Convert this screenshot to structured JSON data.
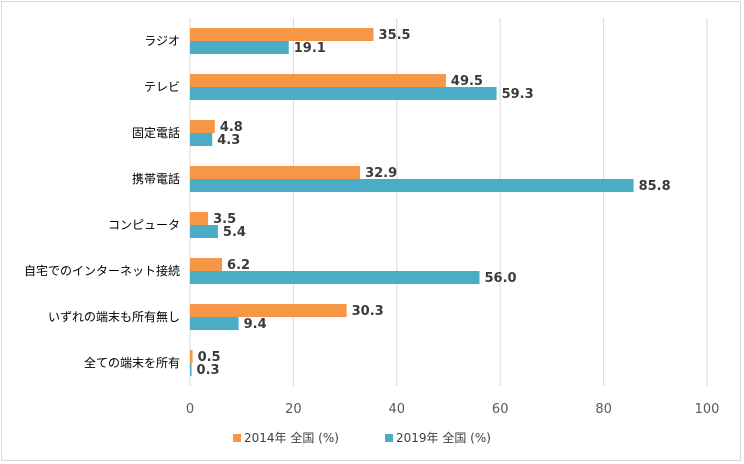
{
  "chart_data": {
    "type": "bar",
    "orientation": "horizontal",
    "categories": [
      "ラジオ",
      "テレビ",
      "固定電話",
      "携帯電話",
      "コンピュータ",
      "自宅でのインターネット接続",
      "いずれの端末も所有無し",
      "全ての端末を所有"
    ],
    "series": [
      {
        "name": "2014年 全国 (%)",
        "color": "#f79646",
        "values": [
          35.5,
          49.5,
          4.8,
          32.9,
          3.5,
          6.2,
          30.3,
          0.5
        ],
        "labels": [
          "35.5",
          "49.5",
          "4.8",
          "32.9",
          "3.5",
          "6.2",
          "30.3",
          "0.5"
        ]
      },
      {
        "name": "2019年 全国 (%)",
        "color": "#4bacc6",
        "values": [
          19.1,
          59.3,
          4.3,
          85.8,
          5.4,
          56.0,
          9.4,
          0.3
        ],
        "labels": [
          "19.1",
          "59.3",
          "4.3",
          "85.8",
          "5.4",
          "56.0",
          "9.4",
          "0.3"
        ]
      }
    ],
    "xlim": [
      0,
      100
    ],
    "xticks": [
      "0",
      "20",
      "40",
      "60",
      "80",
      "100"
    ],
    "grid": "vertical",
    "legend_position": "bottom"
  }
}
